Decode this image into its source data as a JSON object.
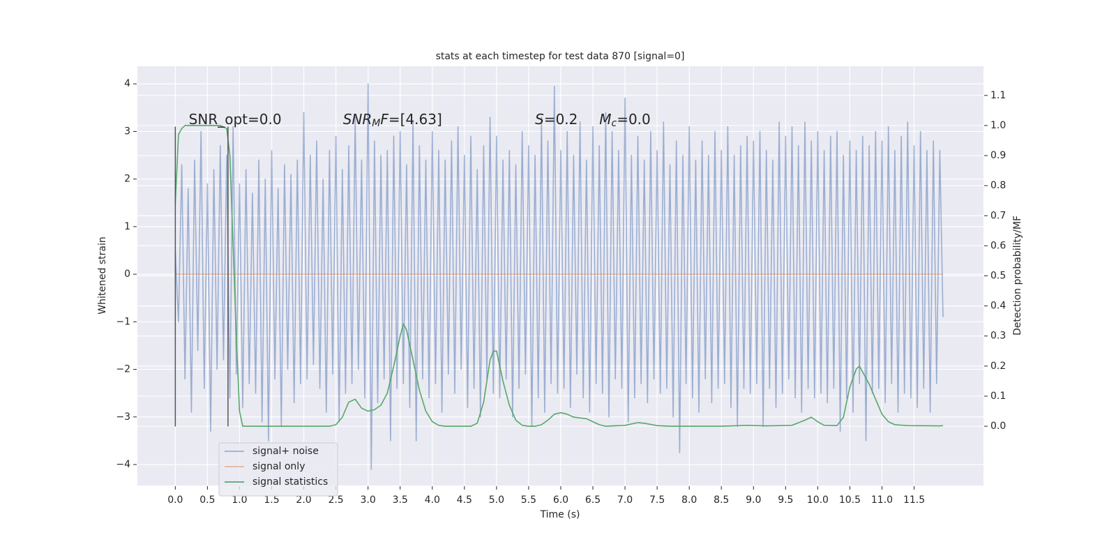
{
  "chart_data": {
    "type": "line",
    "title": "stats at each timestep for test data 870 [signal=0]",
    "xlabel": "Time (s)",
    "ylabel": "Whitened strain",
    "y2label": "Detection probability/MF",
    "xlim": [
      -0.59,
      12.58
    ],
    "ylim": [
      -4.44,
      4.37
    ],
    "y2lim": [
      -0.197,
      1.197
    ],
    "xticks": [
      {
        "value": 0,
        "label": "0.0"
      },
      0.5,
      {
        "value": 1,
        "label": "1.0"
      },
      1.5,
      {
        "value": 2,
        "label": "2.0"
      },
      2.5,
      {
        "value": 3,
        "label": "3.0"
      },
      3.5,
      {
        "value": 4,
        "label": "4.0"
      },
      4.5,
      {
        "value": 5,
        "label": "5.0"
      },
      5.5,
      {
        "value": 6,
        "label": "6.0"
      },
      6.5,
      {
        "value": 7,
        "label": "7.0"
      },
      7.5,
      {
        "value": 8,
        "label": "8.0"
      },
      8.5,
      {
        "value": 9,
        "label": "9.0"
      },
      9.5,
      {
        "value": 10,
        "label": "10.0"
      },
      10.5,
      {
        "value": 11,
        "label": "11.0"
      },
      11.5
    ],
    "yticks": [
      {
        "value": -4,
        "label": "−4"
      },
      {
        "value": -3,
        "label": "−3"
      },
      {
        "value": -2,
        "label": "−2"
      },
      {
        "value": -1,
        "label": "−1"
      },
      0,
      1,
      2,
      3,
      4
    ],
    "y2ticks": [
      {
        "value": 0,
        "label": "0.0"
      },
      0.1,
      0.2,
      0.3,
      0.4,
      0.5,
      0.6,
      0.7,
      0.8,
      0.9,
      {
        "value": 1,
        "label": "1.0"
      },
      1.1
    ],
    "grid": true,
    "legend": "lower left",
    "background": "#eaeaf2",
    "vlines": {
      "x": [
        0,
        0.82
      ],
      "ymin": -3.2,
      "ymax": 3.1,
      "color": "#555555"
    },
    "annotations": [
      {
        "x": 0.21,
        "y": 3.24,
        "parts": [
          {
            "t": "SNR_opt=0.0"
          }
        ]
      },
      {
        "x": 2.61,
        "y": 3.24,
        "parts": [
          {
            "t": "SNR",
            "i": true
          },
          {
            "t": "M",
            "i": true,
            "sub": true
          },
          {
            "t": "F",
            "i": true
          },
          {
            "t": "=[4.63]"
          }
        ]
      },
      {
        "x": 5.6,
        "y": 3.24,
        "parts": [
          {
            "t": "S",
            "i": true
          },
          {
            "t": "=0.2"
          }
        ]
      },
      {
        "x": 6.6,
        "y": 3.24,
        "parts": [
          {
            "t": "M",
            "i": true
          },
          {
            "t": "c",
            "i": true,
            "sub": true
          },
          {
            "t": "=0.0"
          }
        ]
      }
    ],
    "series": [
      {
        "name": "signal+ noise",
        "color": "#4c72b0",
        "alpha": 0.5,
        "axis": "y",
        "x": [
          0,
          0.05,
          0.1,
          0.15,
          0.2,
          0.25,
          0.3,
          0.35,
          0.4,
          0.45,
          0.5,
          0.55,
          0.6,
          0.65,
          0.7,
          0.75,
          0.8,
          0.85,
          0.9,
          0.95,
          1,
          1.05,
          1.1,
          1.15,
          1.2,
          1.25,
          1.3,
          1.35,
          1.4,
          1.45,
          1.5,
          1.55,
          1.6,
          1.65,
          1.7,
          1.75,
          1.8,
          1.85,
          1.9,
          1.95,
          2,
          2.05,
          2.1,
          2.15,
          2.2,
          2.25,
          2.3,
          2.35,
          2.4,
          2.45,
          2.5,
          2.55,
          2.6,
          2.65,
          2.7,
          2.75,
          2.8,
          2.85,
          2.9,
          2.95,
          3,
          3.05,
          3.1,
          3.15,
          3.2,
          3.25,
          3.3,
          3.35,
          3.4,
          3.45,
          3.5,
          3.55,
          3.6,
          3.65,
          3.7,
          3.75,
          3.8,
          3.85,
          3.9,
          3.95,
          4,
          4.05,
          4.1,
          4.15,
          4.2,
          4.25,
          4.3,
          4.35,
          4.4,
          4.45,
          4.5,
          4.55,
          4.6,
          4.65,
          4.7,
          4.75,
          4.8,
          4.85,
          4.9,
          4.95,
          5,
          5.05,
          5.1,
          5.15,
          5.2,
          5.25,
          5.3,
          5.35,
          5.4,
          5.45,
          5.5,
          5.55,
          5.6,
          5.65,
          5.7,
          5.75,
          5.8,
          5.85,
          5.9,
          5.95,
          6,
          6.05,
          6.1,
          6.15,
          6.2,
          6.25,
          6.3,
          6.35,
          6.4,
          6.45,
          6.5,
          6.55,
          6.6,
          6.65,
          6.7,
          6.75,
          6.8,
          6.85,
          6.9,
          6.95,
          7,
          7.05,
          7.1,
          7.15,
          7.2,
          7.25,
          7.3,
          7.35,
          7.4,
          7.45,
          7.5,
          7.55,
          7.6,
          7.65,
          7.7,
          7.75,
          7.8,
          7.85,
          7.9,
          7.95,
          8,
          8.05,
          8.1,
          8.15,
          8.2,
          8.25,
          8.3,
          8.35,
          8.4,
          8.45,
          8.5,
          8.55,
          8.6,
          8.65,
          8.7,
          8.75,
          8.8,
          8.85,
          8.9,
          8.95,
          9,
          9.05,
          9.1,
          9.15,
          9.2,
          9.25,
          9.3,
          9.35,
          9.4,
          9.45,
          9.5,
          9.55,
          9.6,
          9.65,
          9.7,
          9.75,
          9.8,
          9.85,
          9.9,
          9.95,
          10,
          10.05,
          10.1,
          10.15,
          10.2,
          10.25,
          10.3,
          10.35,
          10.4,
          10.45,
          10.5,
          10.55,
          10.6,
          10.65,
          10.7,
          10.75,
          10.8,
          10.85,
          10.9,
          10.95,
          11,
          11.05,
          11.1,
          11.15,
          11.2,
          11.25,
          11.3,
          11.35,
          11.4,
          11.45,
          11.5,
          11.55,
          11.6,
          11.65,
          11.7,
          11.75,
          11.8,
          11.85,
          11.9,
          11.95
        ],
        "values": [
          0.5,
          -1.0,
          2.3,
          -2.2,
          1.8,
          -2.9,
          2.4,
          -1.6,
          3.0,
          -2.4,
          1.9,
          -3.3,
          2.2,
          -2.0,
          2.7,
          -1.8,
          2.5,
          -2.6,
          3.1,
          -2.1,
          1.9,
          -2.8,
          2.2,
          -2.3,
          1.7,
          -2.5,
          2.4,
          -3.1,
          2.0,
          -3.5,
          2.6,
          -2.2,
          1.8,
          -3.2,
          2.3,
          -2.0,
          2.1,
          -2.7,
          2.4,
          -2.3,
          3.4,
          -2.2,
          2.5,
          -1.9,
          2.8,
          -2.4,
          2.0,
          -2.9,
          2.6,
          -2.1,
          2.9,
          -3.1,
          2.2,
          -2.5,
          2.7,
          -2.3,
          3.3,
          -2.0,
          2.4,
          -2.6,
          4.0,
          -4.1,
          2.8,
          -2.7,
          2.5,
          -2.2,
          2.6,
          -3.5,
          2.9,
          -2.4,
          3.0,
          -2.3,
          2.3,
          -2.8,
          3.2,
          -3.5,
          2.7,
          -2.2,
          2.4,
          -2.6,
          3.0,
          -2.3,
          2.6,
          -2.9,
          2.4,
          -2.1,
          2.8,
          -2.5,
          3.1,
          -2.0,
          2.5,
          -2.8,
          2.9,
          -2.4,
          2.2,
          -3.0,
          2.7,
          -2.2,
          3.3,
          -2.5,
          2.9,
          -2.6,
          2.4,
          -2.2,
          2.6,
          -3.0,
          2.3,
          -2.4,
          3.0,
          -2.1,
          2.7,
          -3.2,
          2.5,
          -2.6,
          3.3,
          -2.9,
          2.8,
          -2.3,
          3.95,
          -2.5,
          2.6,
          -2.4,
          3.0,
          -2.8,
          2.5,
          -2.1,
          3.2,
          -2.6,
          2.4,
          -2.9,
          3.1,
          -2.3,
          2.7,
          -2.5,
          3.4,
          -3.0,
          3.0,
          -2.2,
          2.6,
          -2.4,
          3.7,
          -3.1,
          2.5,
          -2.6,
          2.9,
          -2.3,
          2.4,
          -2.7,
          3.0,
          -2.2,
          2.6,
          -2.5,
          3.2,
          -2.4,
          2.3,
          -3.0,
          2.8,
          -3.75,
          2.5,
          -2.3,
          3.1,
          -2.6,
          2.4,
          -2.9,
          2.8,
          -2.2,
          2.5,
          -2.7,
          3.0,
          -2.4,
          2.6,
          -2.3,
          3.1,
          -2.8,
          2.5,
          -3.2,
          2.7,
          -2.4,
          2.9,
          -2.5,
          2.8,
          -2.3,
          3.0,
          -3.2,
          2.6,
          -2.4,
          2.4,
          -2.8,
          3.2,
          -2.5,
          2.9,
          -2.2,
          3.1,
          -2.6,
          2.7,
          -2.9,
          3.2,
          -2.4,
          2.8,
          -2.6,
          3.0,
          -2.5,
          2.6,
          -2.7,
          2.9,
          -2.4,
          3.0,
          -3.3,
          2.5,
          -2.6,
          2.8,
          -2.9,
          2.6,
          -2.3,
          2.9,
          -3.5,
          2.7,
          -2.5,
          3.0,
          -2.4,
          2.8,
          -2.7,
          3.1,
          -2.3,
          2.6,
          -2.9,
          2.9,
          -2.5,
          3.2,
          -2.6,
          2.7,
          -2.8,
          3.0,
          -2.4,
          2.6,
          -2.9,
          2.8,
          -2.3,
          2.6,
          -0.9
        ]
      },
      {
        "name": "signal only",
        "color": "#dd8452",
        "alpha": 0.5,
        "axis": "y",
        "x": [
          0,
          11.95
        ],
        "values": [
          0,
          0
        ]
      },
      {
        "name": "signal statistics",
        "color": "#55a868",
        "alpha": 1,
        "axis": "y2",
        "x": [
          0,
          0.05,
          0.1,
          0.15,
          0.2,
          0.7,
          0.8,
          0.85,
          0.9,
          0.95,
          1.0,
          1.05,
          1.1,
          2.4,
          2.5,
          2.6,
          2.7,
          2.8,
          2.9,
          3.0,
          3.1,
          3.2,
          3.3,
          3.4,
          3.5,
          3.55,
          3.6,
          3.7,
          3.8,
          3.9,
          4.0,
          4.1,
          4.2,
          4.6,
          4.7,
          4.8,
          4.9,
          4.95,
          5.0,
          5.1,
          5.2,
          5.3,
          5.4,
          5.5,
          5.6,
          5.7,
          5.8,
          5.9,
          6.0,
          6.1,
          6.2,
          6.4,
          6.5,
          6.6,
          6.7,
          7.0,
          7.2,
          7.3,
          7.5,
          7.7,
          8.5,
          8.9,
          9.2,
          9.6,
          9.8,
          9.9,
          10.0,
          10.1,
          10.3,
          10.4,
          10.5,
          10.6,
          10.65,
          10.7,
          10.8,
          10.9,
          11.0,
          11.1,
          11.2,
          11.4,
          11.9,
          11.95
        ],
        "values": [
          0.74,
          0.97,
          0.99,
          1.0,
          1.0,
          1.0,
          0.99,
          0.9,
          0.6,
          0.3,
          0.05,
          0.0,
          0.0,
          0.0,
          0.005,
          0.03,
          0.08,
          0.09,
          0.06,
          0.05,
          0.055,
          0.07,
          0.11,
          0.2,
          0.3,
          0.34,
          0.32,
          0.22,
          0.12,
          0.05,
          0.015,
          0.003,
          0.0,
          0.0,
          0.01,
          0.08,
          0.22,
          0.25,
          0.25,
          0.15,
          0.07,
          0.02,
          0.003,
          0.0,
          0.0,
          0.005,
          0.02,
          0.04,
          0.045,
          0.04,
          0.03,
          0.025,
          0.015,
          0.005,
          0.0,
          0.003,
          0.012,
          0.01,
          0.002,
          0.0,
          0.0,
          0.003,
          0.001,
          0.003,
          0.02,
          0.03,
          0.015,
          0.003,
          0.002,
          0.03,
          0.13,
          0.19,
          0.2,
          0.18,
          0.14,
          0.09,
          0.04,
          0.015,
          0.005,
          0.002,
          0.001,
          0.002
        ]
      }
    ]
  }
}
